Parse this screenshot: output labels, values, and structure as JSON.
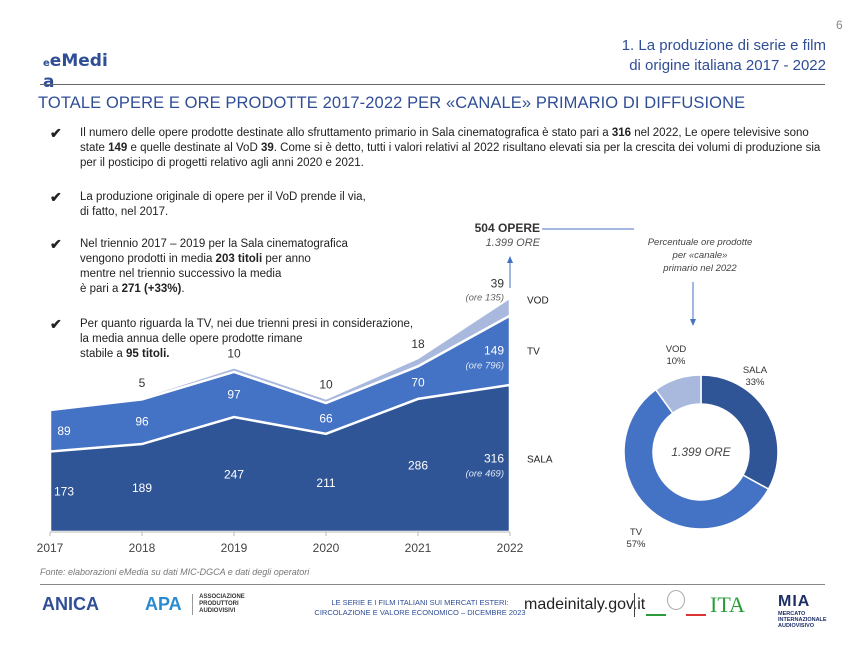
{
  "page_number": "6",
  "logo": {
    "text_main": "eMedi",
    "text_wrap": "a"
  },
  "section_title": {
    "line1": "1. La produzione di serie e film",
    "line2": "di origine italiana 2017 - 2022"
  },
  "main_title": "TOTALE OPERE E ORE PRODOTTE 2017-2022 PER «CANALE» PRIMARIO DI DIFFUSIONE",
  "bullets": [
    {
      "html": "Il numero delle opere prodotte destinate allo sfruttamento primario in Sala cinematografica  è stato pari a <b>316</b> nel 2022, Le opere televisive sono state <b>149</b> e quelle destinate al VoD <b>39</b>. Come si  è detto, tutti i valori relativi al 2022 risultano elevati sia per la crescita dei volumi di produzione sia per il posticipo di progetti relativo agli anni 2020 e 2021."
    },
    {
      "html": "La produzione originale di opere per il VoD prende il via,<br>di fatto, nel 2017."
    },
    {
      "html": "Nel triennio 2017 – 2019 per la Sala cinematografica<br>vengono prodotti in media <b>203 titoli</b> per anno<br>mentre nel triennio successivo la media<br>è pari a <b>271 (+33%)</b>."
    },
    {
      "html": "Per quanto riguarda la TV, nei due trienni presi in considerazione,<br>la media annua delle opere prodotte rimane<br>stabile a <b>95 titoli.</b>"
    }
  ],
  "check_icon": "✔",
  "chart_data": [
    {
      "type": "area",
      "stacked": true,
      "title": "TOTALE OPERE E ORE PRODOTTE 2017-2022 PER «CANALE» PRIMARIO DI DIFFUSIONE",
      "categories": [
        "2017",
        "2018",
        "2019",
        "2020",
        "2021",
        "2022"
      ],
      "series": [
        {
          "name": "SALA",
          "values": [
            173,
            189,
            247,
            211,
            286,
            316
          ],
          "color": "#2f5597",
          "hours_2022": "(ore 469)"
        },
        {
          "name": "TV",
          "values": [
            89,
            96,
            97,
            66,
            70,
            149
          ],
          "color": "#4472c4",
          "hours_2022": "(ore 796)"
        },
        {
          "name": "VOD",
          "values": [
            0,
            5,
            10,
            10,
            18,
            39
          ],
          "color": "#a9b9dd",
          "hours_2022": "(ore 135)"
        }
      ],
      "value_labels_visible": {
        "SALA": [
          "173",
          "189",
          "247",
          "211",
          "286",
          "316"
        ],
        "TV": [
          "89",
          "96",
          "97",
          "66",
          "70",
          "149"
        ],
        "VOD": [
          "",
          "5",
          "10",
          "10",
          "18",
          "39"
        ]
      },
      "total_annotation": {
        "opere": "504 OPERE",
        "ore": "1.399 ORE"
      },
      "ylim": [
        0,
        520
      ],
      "grid": false,
      "legend": "right"
    },
    {
      "type": "pie",
      "donut": true,
      "title": "Percentuale ore prodotte per «canale» primario nel 2022",
      "center_label": "1.399 ORE",
      "slices": [
        {
          "name": "SALA",
          "value": 33,
          "label": "33%",
          "color": "#2f5597"
        },
        {
          "name": "TV",
          "value": 57,
          "label": "57%",
          "color": "#4472c4"
        },
        {
          "name": "VOD",
          "value": 10,
          "label": "10%",
          "color": "#a9b9dd"
        }
      ]
    }
  ],
  "donut_caption": {
    "line1": "Percentuale ore prodotte",
    "line2": "per «canale»",
    "line3": "primario nel 2022"
  },
  "source": "Fonte: elaborazioni eMedia su dati MIC-DGCA e dati degli operatori",
  "footer": {
    "anica": "ANICA",
    "apa": "APA",
    "apa_sub": "ASSOCIAZIONE PRODUTTORI AUDIOVISIVI",
    "center_line1": "LE SERIE E I FILM ITALIANI SUI MERCATI ESTERI:",
    "center_line2": "CIRCOLAZIONE E VALORE ECONOMICO – DICEMBRE 2023",
    "madeinitaly": "madeinitaly.gov.it",
    "ita": "ITA",
    "mia": "MIA",
    "mia_sub": "MERCATO INTERNAZIONALE AUDIOVISIVO"
  }
}
